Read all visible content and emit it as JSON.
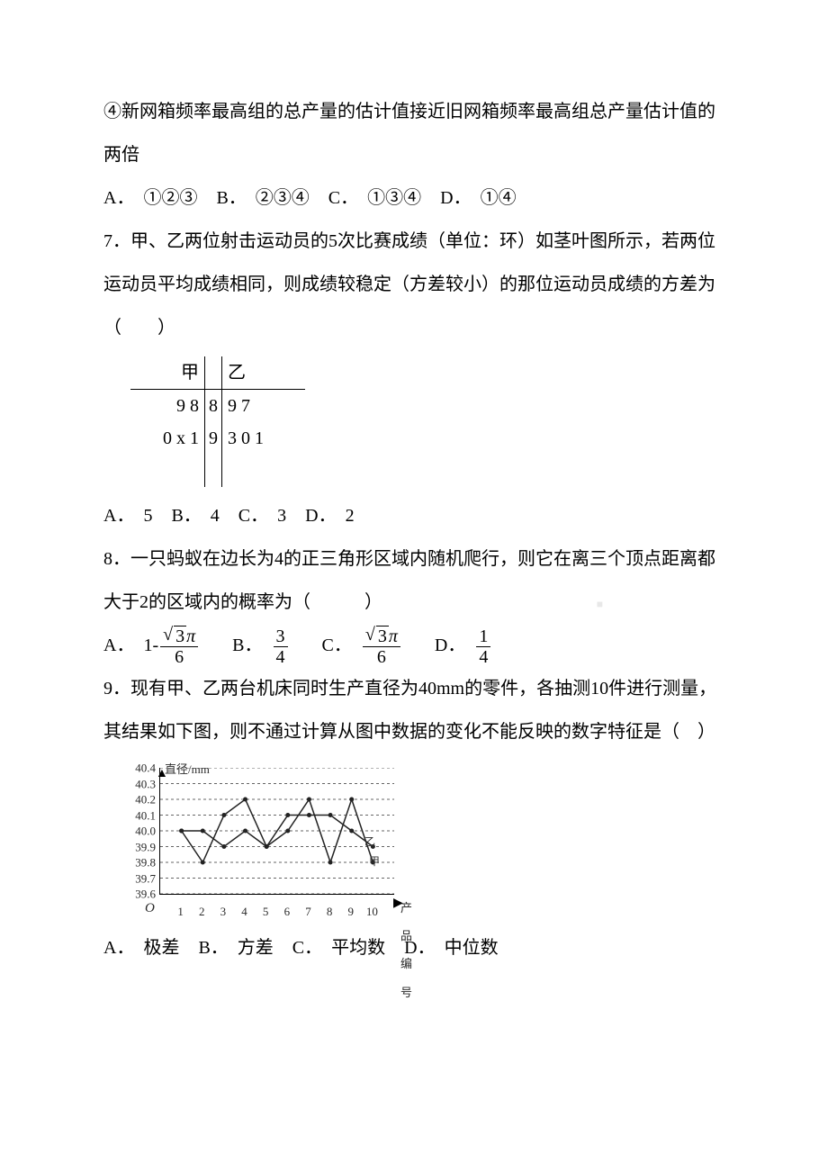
{
  "q4_cont": {
    "text": "④新网箱频率最高组的总产量的估计值接近旧网箱频率最高组总产量估计值的两倍"
  },
  "q6_opts": {
    "A": "①②③",
    "B": "②③④",
    "C": "①③④",
    "D": "①④"
  },
  "q7": {
    "num": "7．",
    "text": "甲、乙两位射击运动员的5次比赛成绩（单位：环）如茎叶图所示，若两位运动员平均成绩相同，则成绩较稳定（方差较小）的那位运动员成绩的方差为（　　）",
    "stemleaf": {
      "left_header": "甲",
      "right_header": "乙",
      "rows": [
        {
          "left": "9  8",
          "stem": "8",
          "right": "9  7"
        },
        {
          "left": "0  x  1",
          "stem": "9",
          "right": "3  0  1"
        }
      ]
    },
    "opts": {
      "A": "5",
      "B": "4",
      "C": "3",
      "D": "2"
    }
  },
  "q8": {
    "num": "8．",
    "text": "一只蚂蚁在边长为4的正三角形区域内随机爬行，则它在离三个顶点距离都大于2的区域内的概率为（　　　）",
    "opts": {
      "A_prefix": "1-",
      "A_num": "√3π",
      "A_den": "6",
      "B_num": "3",
      "B_den": "4",
      "C_num": "√3π",
      "C_den": "6",
      "D_num": "1",
      "D_den": "4"
    }
  },
  "q9": {
    "num": "9．",
    "text": "现有甲、乙两台机床同时生产直径为40mm的零件，各抽测10件进行测量，其结果如下图，则不通过计算从图中数据的变化不能反映的数字特征是（　）",
    "chart": {
      "y_title": "直径/mm",
      "x_title": "产品编号",
      "y_labels": [
        "40.4",
        "40.3",
        "40.2",
        "40.1",
        "40.0",
        "39.9",
        "39.8",
        "39.7",
        "39.6"
      ],
      "y_lim": [
        39.6,
        40.4
      ],
      "x_lim": [
        0,
        11
      ],
      "x_ticks": [
        "1",
        "2",
        "3",
        "4",
        "5",
        "6",
        "7",
        "8",
        "9",
        "10"
      ],
      "grid_color": "#666666",
      "series": [
        {
          "name": "甲",
          "color": "#222222",
          "label_pos": "right-low",
          "values": [
            40.0,
            39.8,
            40.1,
            40.2,
            39.9,
            40.0,
            40.2,
            39.8,
            40.2,
            39.8
          ]
        },
        {
          "name": "乙",
          "color": "#222222",
          "label_pos": "right-mid",
          "values": [
            40.0,
            40.0,
            39.9,
            40.0,
            39.9,
            40.1,
            40.1,
            40.1,
            40.0,
            39.9
          ]
        }
      ]
    },
    "opts": {
      "A": "极差",
      "B": "方差",
      "C": "平均数",
      "D": "中位数"
    }
  },
  "labels": {
    "A": "A．",
    "B": "B．",
    "C": "C．",
    "D": "D．"
  },
  "watermark": "■"
}
